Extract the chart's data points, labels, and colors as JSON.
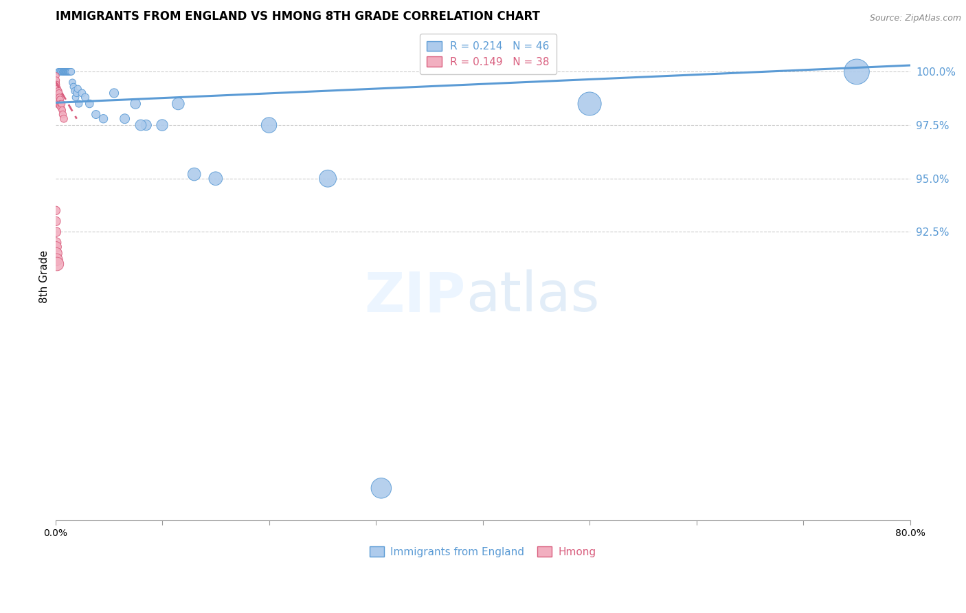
{
  "title": "IMMIGRANTS FROM ENGLAND VS HMONG 8TH GRADE CORRELATION CHART",
  "source": "Source: ZipAtlas.com",
  "ylabel": "8th Grade",
  "england_color": "#aecbec",
  "hmong_color": "#f2afc0",
  "england_line_color": "#5b9bd5",
  "hmong_line_color": "#d95f7f",
  "legend_r1": "R = 0.214",
  "legend_n1": "N = 46",
  "legend_r2": "R = 0.149",
  "legend_n2": "N = 38",
  "xmin": 0.0,
  "xmax": 80.0,
  "ymin": 79.0,
  "ymax": 101.8,
  "ytick_vals": [
    92.5,
    95.0,
    97.5,
    100.0
  ],
  "eng_trend_x0": 0.0,
  "eng_trend_y0": 98.55,
  "eng_trend_x1": 80.0,
  "eng_trend_y1": 100.3,
  "hmong_trend_x0": 0.0,
  "hmong_trend_y0": 99.55,
  "hmong_trend_x1": 2.0,
  "hmong_trend_y1": 97.8,
  "eng_x": [
    0.3,
    0.4,
    0.5,
    0.6,
    0.7,
    0.75,
    0.8,
    0.85,
    0.9,
    0.95,
    1.0,
    1.05,
    1.1,
    1.15,
    1.2,
    1.25,
    1.3,
    1.35,
    1.4,
    1.5,
    1.6,
    1.7,
    1.8,
    1.9,
    2.0,
    2.1,
    2.2,
    2.5,
    2.8,
    3.2,
    3.8,
    4.5,
    5.5,
    6.5,
    7.5,
    8.5,
    10.0,
    11.5,
    13.0,
    15.0,
    20.0,
    25.5,
    30.5,
    50.0,
    75.0,
    8.0
  ],
  "eng_y": [
    100.0,
    100.0,
    100.0,
    100.0,
    100.0,
    100.0,
    100.0,
    100.0,
    100.0,
    100.0,
    100.0,
    100.0,
    100.0,
    100.0,
    100.0,
    100.0,
    100.0,
    100.0,
    100.0,
    100.0,
    99.5,
    99.3,
    99.1,
    98.8,
    99.0,
    99.2,
    98.5,
    99.0,
    98.8,
    98.5,
    98.0,
    97.8,
    99.0,
    97.8,
    98.5,
    97.5,
    97.5,
    98.5,
    95.2,
    95.0,
    97.5,
    95.0,
    80.5,
    98.5,
    100.0,
    97.5
  ],
  "eng_s": [
    50,
    50,
    50,
    50,
    50,
    50,
    50,
    50,
    50,
    50,
    50,
    50,
    50,
    50,
    50,
    50,
    50,
    50,
    50,
    50,
    50,
    50,
    50,
    50,
    55,
    55,
    55,
    60,
    65,
    70,
    75,
    80,
    90,
    100,
    110,
    120,
    140,
    160,
    180,
    200,
    260,
    320,
    450,
    600,
    700,
    130
  ],
  "hmong_x": [
    0.05,
    0.07,
    0.08,
    0.09,
    0.1,
    0.1,
    0.1,
    0.1,
    0.1,
    0.12,
    0.13,
    0.14,
    0.15,
    0.16,
    0.17,
    0.18,
    0.2,
    0.2,
    0.2,
    0.2,
    0.22,
    0.25,
    0.28,
    0.3,
    0.3,
    0.3,
    0.32,
    0.35,
    0.38,
    0.4,
    0.42,
    0.45,
    0.5,
    0.55,
    0.6,
    0.65,
    0.7,
    0.8
  ],
  "hmong_y": [
    99.8,
    99.5,
    99.6,
    99.4,
    99.3,
    99.1,
    98.9,
    98.7,
    98.5,
    99.2,
    99.0,
    98.8,
    99.1,
    98.9,
    98.7,
    99.0,
    99.2,
    99.0,
    98.8,
    98.6,
    98.5,
    99.0,
    98.7,
    99.1,
    98.9,
    98.7,
    98.5,
    99.0,
    98.8,
    98.6,
    98.4,
    98.7,
    98.5,
    98.3,
    98.5,
    98.2,
    98.0,
    97.8
  ],
  "hmong_s": [
    50,
    50,
    50,
    50,
    50,
    50,
    50,
    50,
    50,
    50,
    50,
    50,
    50,
    50,
    50,
    50,
    50,
    50,
    50,
    50,
    50,
    50,
    50,
    50,
    50,
    50,
    50,
    50,
    50,
    50,
    50,
    50,
    50,
    50,
    50,
    50,
    55,
    60
  ],
  "hmong_extra_x": [
    0.05,
    0.06,
    0.07,
    0.07,
    0.08,
    0.1,
    0.12,
    0.15
  ],
  "hmong_extra_y": [
    93.5,
    93.0,
    92.5,
    92.0,
    91.8,
    91.5,
    91.2,
    91.0
  ],
  "hmong_extra_s": [
    80,
    90,
    100,
    110,
    120,
    140,
    160,
    200
  ]
}
